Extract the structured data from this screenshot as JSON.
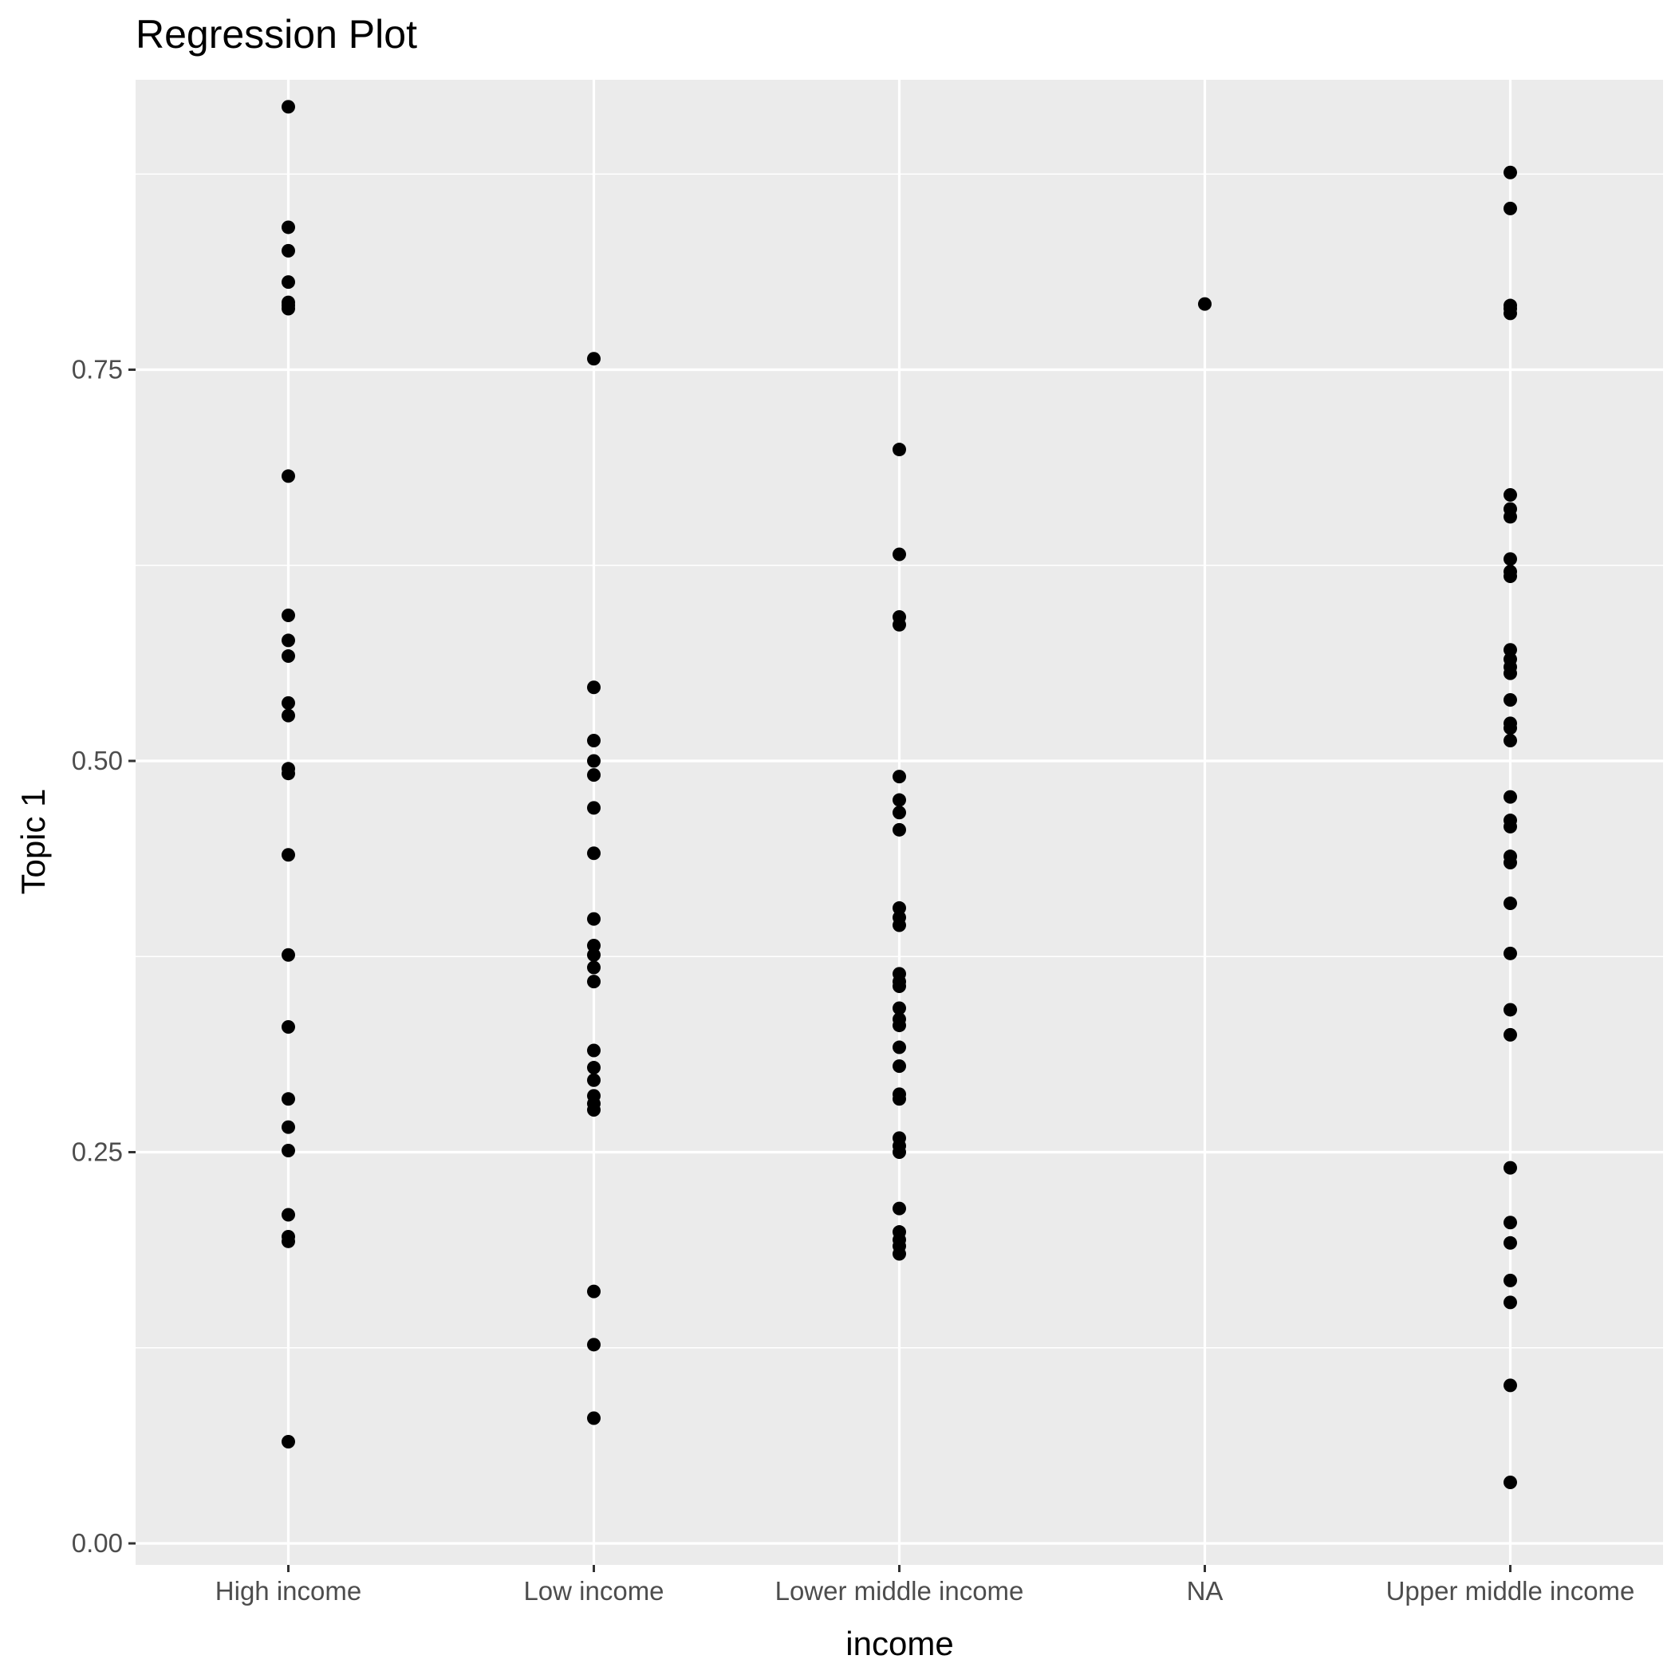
{
  "chart_data": {
    "type": "scatter",
    "title": "Regression Plot",
    "xlabel": "income",
    "ylabel": "Topic 1",
    "categories": [
      "High income",
      "Low income",
      "Lower middle income",
      "NA",
      "Upper middle income"
    ],
    "ylim": [
      0,
      0.94
    ],
    "yticks": [
      "0.00",
      "0.25",
      "0.50",
      "0.75"
    ],
    "grid": true,
    "legend": "none",
    "point_color": "#000000",
    "panel_background": "#ebebeb",
    "series": [
      {
        "category": "High income",
        "values": [
          0.918,
          0.841,
          0.826,
          0.806,
          0.793,
          0.791,
          0.789,
          0.682,
          0.593,
          0.577,
          0.567,
          0.537,
          0.529,
          0.495,
          0.492,
          0.44,
          0.376,
          0.33,
          0.284,
          0.266,
          0.251,
          0.21,
          0.196,
          0.193,
          0.065
        ]
      },
      {
        "category": "Low income",
        "values": [
          0.757,
          0.547,
          0.513,
          0.5,
          0.491,
          0.47,
          0.441,
          0.399,
          0.382,
          0.376,
          0.368,
          0.359,
          0.315,
          0.304,
          0.296,
          0.286,
          0.281,
          0.277,
          0.161,
          0.127,
          0.08
        ]
      },
      {
        "category": "Lower middle income",
        "values": [
          0.699,
          0.632,
          0.592,
          0.587,
          0.49,
          0.475,
          0.467,
          0.456,
          0.406,
          0.4,
          0.395,
          0.364,
          0.359,
          0.356,
          0.342,
          0.335,
          0.331,
          0.317,
          0.305,
          0.287,
          0.284,
          0.259,
          0.254,
          0.25,
          0.214,
          0.199,
          0.194,
          0.19,
          0.185
        ]
      },
      {
        "category": "NA",
        "values": [
          0.792
        ]
      },
      {
        "category": "Upper middle income",
        "values": [
          0.876,
          0.853,
          0.791,
          0.789,
          0.786,
          0.67,
          0.661,
          0.656,
          0.629,
          0.621,
          0.618,
          0.571,
          0.565,
          0.56,
          0.556,
          0.539,
          0.524,
          0.521,
          0.513,
          0.477,
          0.462,
          0.458,
          0.439,
          0.435,
          0.409,
          0.377,
          0.341,
          0.325,
          0.24,
          0.205,
          0.192,
          0.168,
          0.154,
          0.101,
          0.039
        ]
      }
    ]
  }
}
